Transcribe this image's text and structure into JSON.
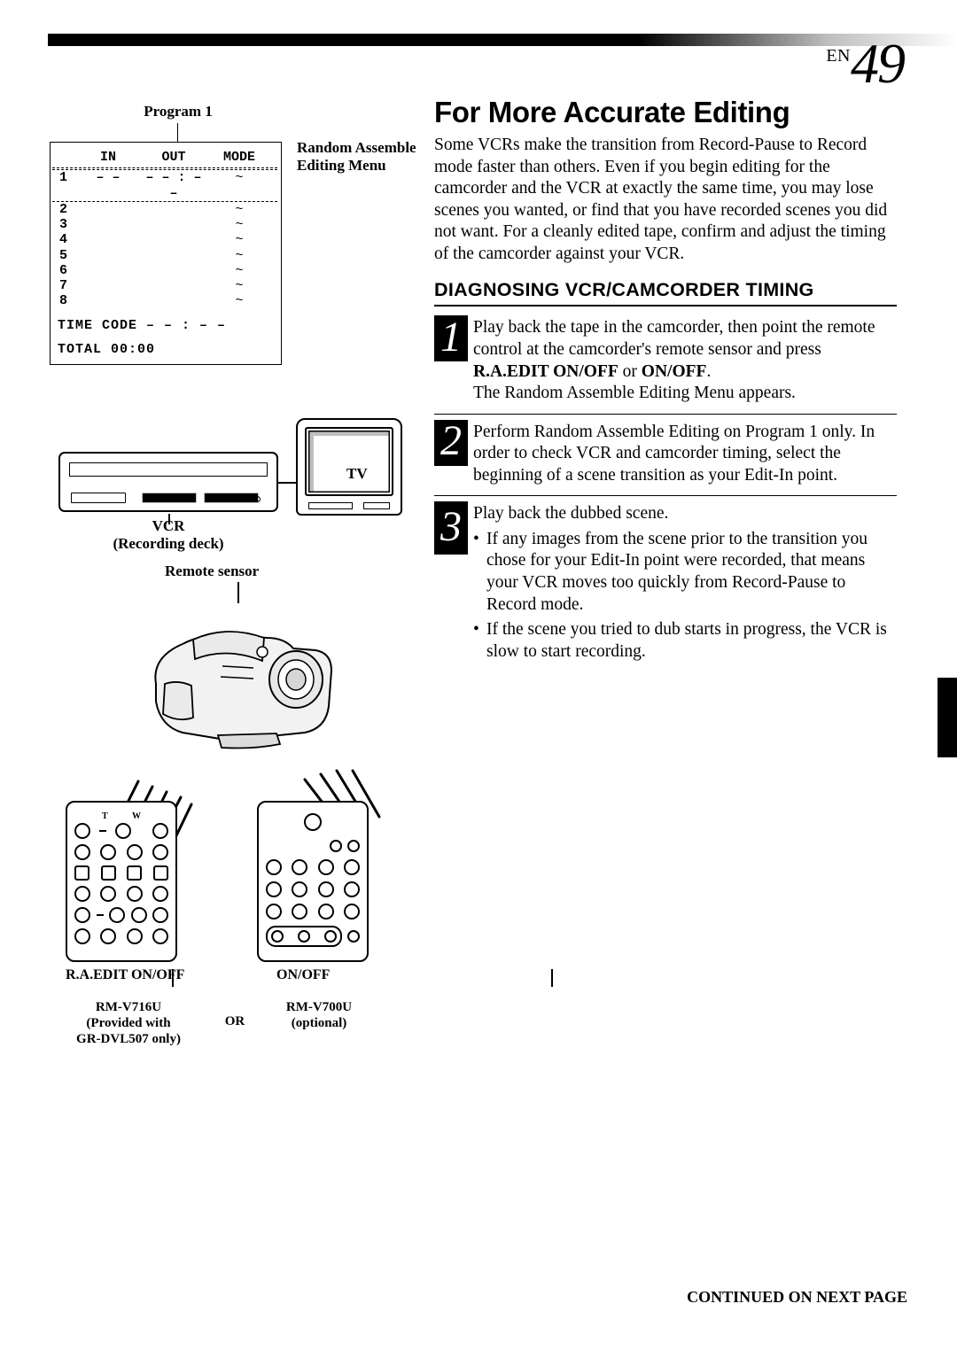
{
  "page": {
    "en_prefix": "EN",
    "number": "49"
  },
  "left": {
    "program_label": "Program 1",
    "menu_caption": "Random Assemble Editing Menu",
    "menu": {
      "headers": [
        "",
        "IN",
        "OUT",
        "MODE"
      ],
      "rows": [
        {
          "n": "1",
          "in": "– –",
          "out": "– – : – –",
          "mode": "~"
        },
        {
          "n": "2",
          "in": "",
          "out": "",
          "mode": "~"
        },
        {
          "n": "3",
          "in": "",
          "out": "",
          "mode": "~"
        },
        {
          "n": "4",
          "in": "",
          "out": "",
          "mode": "~"
        },
        {
          "n": "5",
          "in": "",
          "out": "",
          "mode": "~"
        },
        {
          "n": "6",
          "in": "",
          "out": "",
          "mode": "~"
        },
        {
          "n": "7",
          "in": "",
          "out": "",
          "mode": "~"
        },
        {
          "n": "8",
          "in": "",
          "out": "",
          "mode": "~"
        }
      ],
      "footer1": "TIME CODE  – – : – –",
      "footer2": "TOTAL      00:00"
    },
    "vcr_label_line1": "VCR",
    "vcr_label_line2": "(Recording deck)",
    "tv_label": "TV",
    "remote_sensor_label": "Remote sensor",
    "btn_label_left": "R.A.EDIT ON/OFF",
    "btn_label_right": "ON/OFF",
    "model_left_line1": "RM-V716U",
    "model_left_line2": "(Provided with",
    "model_left_line3": "GR-DVL507 only)",
    "or_label": "OR",
    "model_right_line1": "RM-V700U",
    "model_right_line2": "(optional)"
  },
  "right": {
    "heading": "For More Accurate Editing",
    "intro": "Some VCRs make the transition from Record-Pause to Record mode faster than others. Even if you begin editing for the camcorder and the VCR at exactly the same time, you may lose scenes you wanted, or find that you have recorded scenes you did not want. For a cleanly edited tape, confirm and adjust the timing of the camcorder against your VCR.",
    "subheading": "DIAGNOSING VCR/CAMCORDER TIMING",
    "steps": [
      {
        "n": "1",
        "body_a": "Play back the tape in the camcorder, then point the remote control at the camcorder's remote sensor and press ",
        "bold_a": "R.A.EDIT ON/OFF",
        "body_mid": " or ",
        "bold_b": "ON/OFF",
        "body_end": ".",
        "tail": "The Random Assemble Editing Menu appears."
      },
      {
        "n": "2",
        "body": "Perform Random Assemble Editing on Program 1 only. In order to check VCR and camcorder timing, select the beginning of a scene transition as your Edit-In point."
      },
      {
        "n": "3",
        "body": "Play back the dubbed scene.",
        "bullets": [
          "If any images from the scene prior to the transition you chose for your Edit-In point were recorded, that means your VCR moves too quickly from Record-Pause to Record mode.",
          "If the scene you tried to dub starts in progress, the VCR is slow to start recording."
        ]
      }
    ]
  },
  "continued": "CONTINUED ON NEXT PAGE"
}
